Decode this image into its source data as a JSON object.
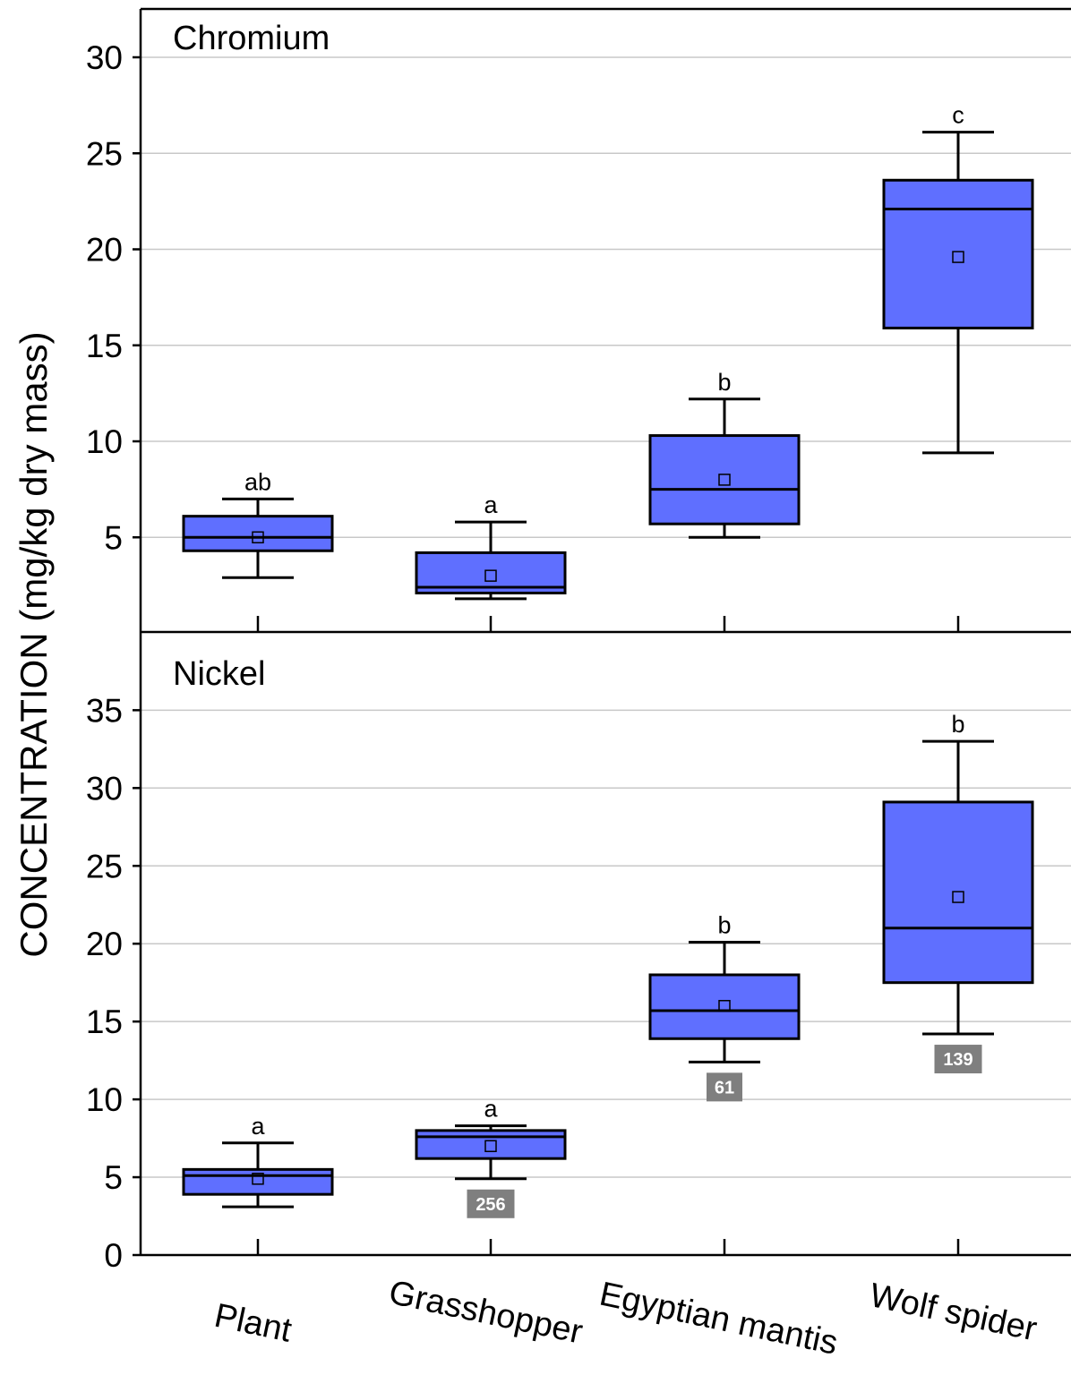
{
  "chart_data": {
    "type": "box",
    "ylabel": "CONCENTRATION (mg/kg dry mass)",
    "categories": [
      "Plant",
      "Grasshopper",
      "Egyptian mantis",
      "Wolf spider"
    ],
    "colors": {
      "box_fill": "#5F6FFF",
      "box_stroke": "#000000",
      "grid": "#c8c8c8",
      "badge_fill": "#7f7f7f",
      "badge_text": "#ffffff"
    },
    "panels": [
      {
        "title": "Chromium",
        "ylim": [
          0,
          32.5
        ],
        "yticks": [
          5,
          10,
          15,
          20,
          25,
          30
        ],
        "grid": true,
        "boxes": [
          {
            "category": "Plant",
            "whisker_low": 2.9,
            "q1": 4.3,
            "median": 5.0,
            "q3": 6.1,
            "whisker_high": 7.0,
            "mean": 5.0,
            "letter": "ab"
          },
          {
            "category": "Grasshopper",
            "whisker_low": 1.8,
            "q1": 2.1,
            "median": 2.4,
            "q3": 4.2,
            "whisker_high": 5.8,
            "mean": 3.0,
            "letter": "a"
          },
          {
            "category": "Egyptian mantis",
            "whisker_low": 5.0,
            "q1": 5.7,
            "median": 7.5,
            "q3": 10.3,
            "whisker_high": 12.2,
            "mean": 8.0,
            "letter": "b"
          },
          {
            "category": "Wolf spider",
            "whisker_low": 9.4,
            "q1": 15.9,
            "median": 22.1,
            "q3": 23.6,
            "whisker_high": 26.1,
            "mean": 19.6,
            "letter": "c"
          }
        ]
      },
      {
        "title": "Nickel",
        "ylim": [
          0,
          40
        ],
        "yticks": [
          0,
          5,
          10,
          15,
          20,
          25,
          30,
          35
        ],
        "grid": true,
        "boxes": [
          {
            "category": "Plant",
            "whisker_low": 3.1,
            "q1": 3.9,
            "median": 5.1,
            "q3": 5.5,
            "whisker_high": 7.2,
            "mean": 4.9,
            "letter": "a",
            "badge": ""
          },
          {
            "category": "Grasshopper",
            "whisker_low": 4.9,
            "q1": 6.2,
            "median": 7.6,
            "q3": 8.0,
            "whisker_high": 8.3,
            "mean": 7.0,
            "letter": "a",
            "badge": "256"
          },
          {
            "category": "Egyptian mantis",
            "whisker_low": 12.4,
            "q1": 13.9,
            "median": 15.7,
            "q3": 18.0,
            "whisker_high": 20.1,
            "mean": 16.0,
            "letter": "b",
            "badge": "61"
          },
          {
            "category": "Wolf spider",
            "whisker_low": 14.2,
            "q1": 17.5,
            "median": 21.0,
            "q3": 29.1,
            "whisker_high": 33.0,
            "mean": 23.0,
            "letter": "b",
            "badge": "139"
          }
        ]
      }
    ]
  }
}
